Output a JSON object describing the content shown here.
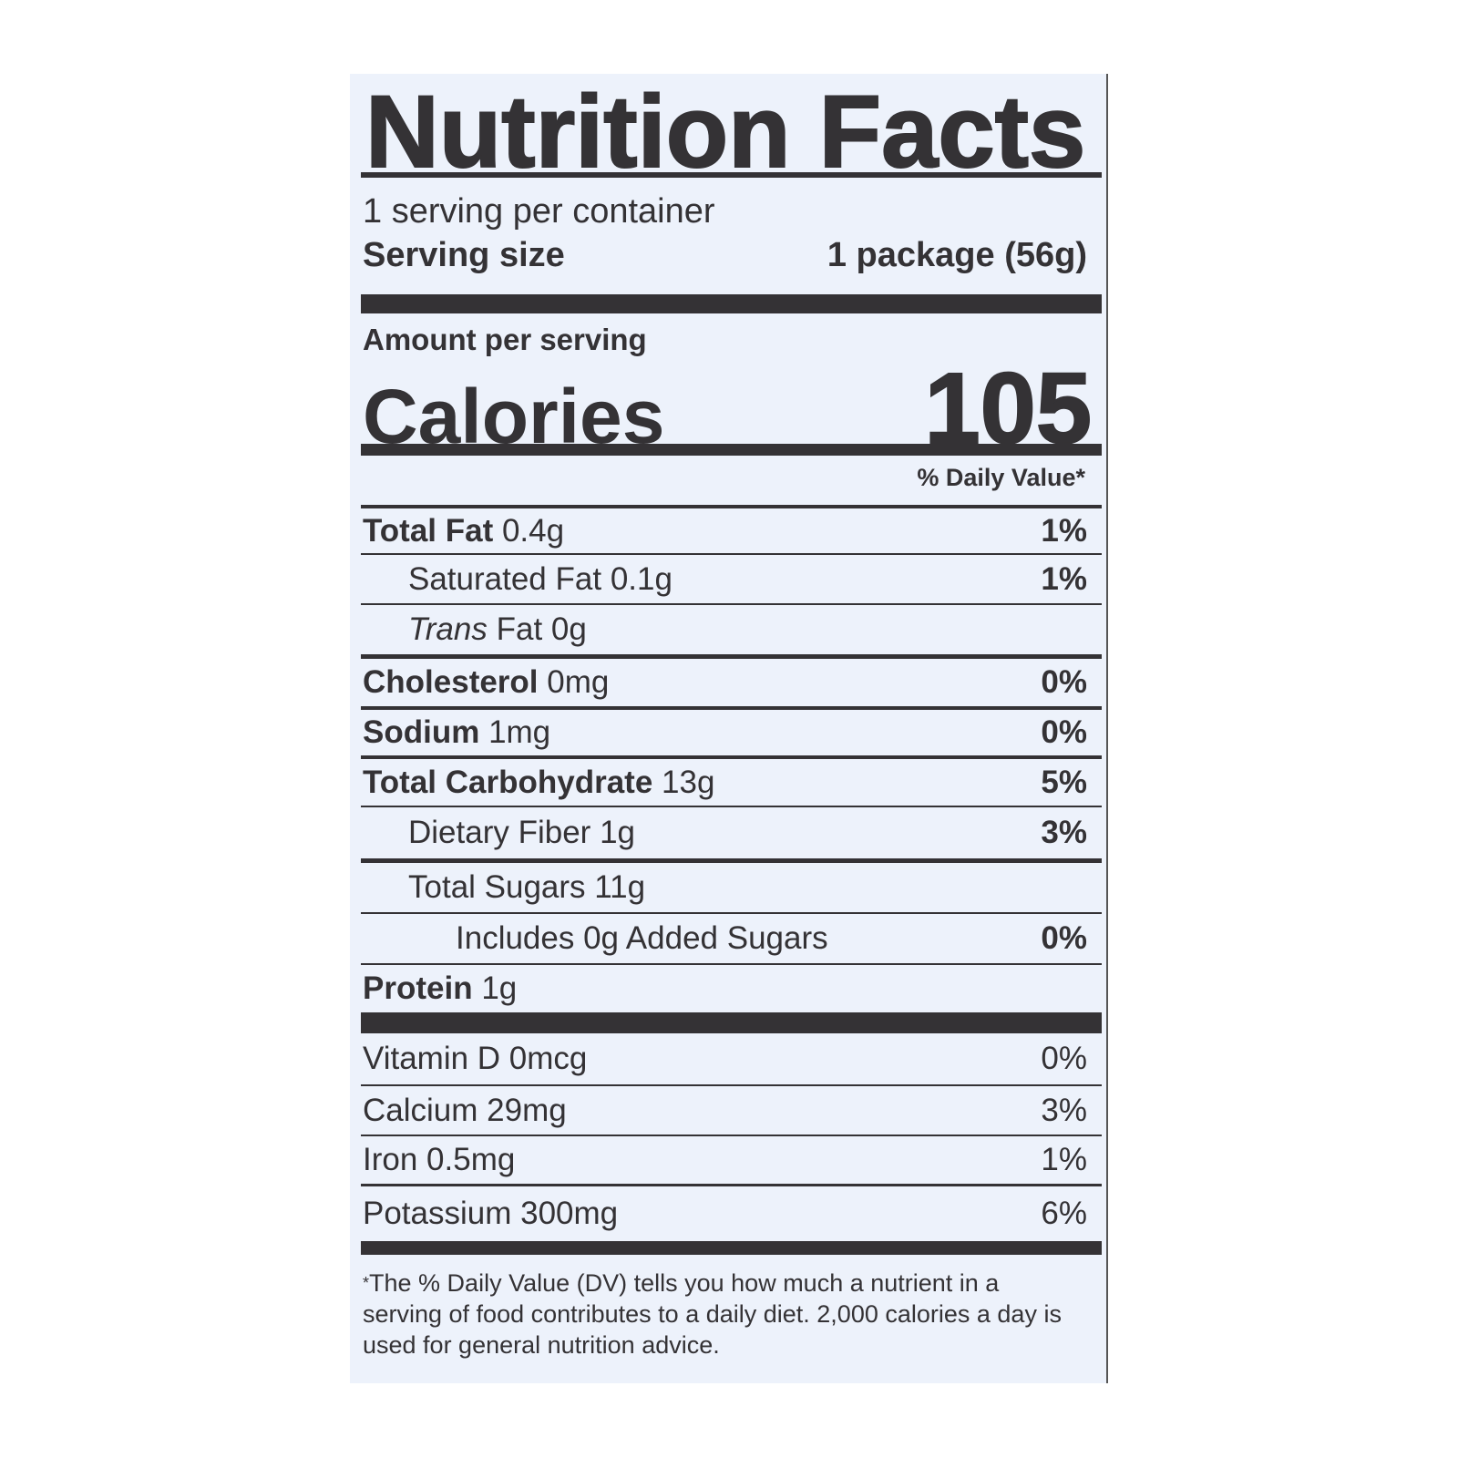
{
  "title": "Nutrition Facts",
  "servings_per_container": "1 serving per container",
  "serving_size": {
    "label": "Serving size",
    "value": "1 package (56g)"
  },
  "amount_per_serving": "Amount per serving",
  "calories": {
    "label": "Calories",
    "value": "105"
  },
  "daily_value_header": "% Daily Value*",
  "nutrients": [
    {
      "name": "Total Fat",
      "amount": "0.4g",
      "dv": "1%"
    },
    {
      "name": "Saturated Fat",
      "amount": "0.1g",
      "dv": "1%"
    },
    {
      "name": "Trans",
      "amount": "Fat 0g",
      "dv": ""
    },
    {
      "name": "Cholesterol",
      "amount": "0mg",
      "dv": "0%"
    },
    {
      "name": "Sodium",
      "amount": "1mg",
      "dv": "0%"
    },
    {
      "name": "Total Carbohydrate",
      "amount": "13g",
      "dv": "5%"
    },
    {
      "name": "Dietary Fiber",
      "amount": "1g",
      "dv": "3%"
    },
    {
      "name": "Total Sugars",
      "amount": "11g",
      "dv": ""
    },
    {
      "name": "Includes 0g Added Sugars",
      "amount": "",
      "dv": "0%"
    },
    {
      "name": "Protein",
      "amount": "1g",
      "dv": ""
    }
  ],
  "vitamins": [
    {
      "name": "Vitamin D 0mcg",
      "dv": "0%"
    },
    {
      "name": "Calcium 29mg",
      "dv": "3%"
    },
    {
      "name": "Iron 0.5mg",
      "dv": "1%"
    },
    {
      "name": "Potassium 300mg",
      "dv": "6%"
    }
  ],
  "footnote_marker": "*",
  "footnote": "The % Daily Value (DV) tells you how much a nutrient in a serving of food contributes to a daily diet. 2,000 calories a day is used for general nutrition advice."
}
